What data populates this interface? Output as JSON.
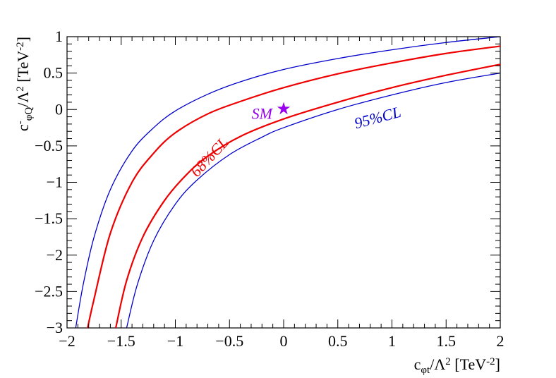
{
  "chart_data": {
    "type": "line",
    "xlabel": {
      "base": "c",
      "sub": "φt",
      "mid": "/Λ",
      "sup": "2",
      "unit_open": " [TeV",
      "unit_sup": "-2",
      "unit_close": "]"
    },
    "ylabel": {
      "base": "c",
      "sub": "φQ",
      "pre": "-",
      "mid": "/Λ",
      "sup": "2",
      "unit_open": " [TeV",
      "unit_sup": "-2",
      "unit_close": "]"
    },
    "xlim": [
      -2,
      2
    ],
    "ylim": [
      -3,
      1
    ],
    "x_ticks": [
      -2,
      -1.5,
      -1,
      -0.5,
      0,
      0.5,
      1,
      1.5,
      2
    ],
    "x_tick_labels": [
      "−2",
      "−1.5",
      "−1",
      "−0.5",
      "0",
      "0.5",
      "1",
      "1.5",
      "2"
    ],
    "y_ticks": [
      -3,
      -2.5,
      -2,
      -1.5,
      -1,
      -0.5,
      0,
      0.5,
      1
    ],
    "y_tick_labels": [
      "−3",
      "−2.5",
      "−2",
      "−1.5",
      "−1",
      "−0.5",
      "0",
      "0.5",
      "1"
    ],
    "grid": false,
    "series": [
      {
        "name": "95%CL",
        "color": "#0000cc",
        "width": 1.3,
        "x": [
          -1.92,
          -1.85,
          -1.75,
          -1.6,
          -1.4,
          -1.2,
          -1.0,
          -0.7,
          -0.4,
          0.0,
          0.5,
          1.0,
          1.5,
          2.0
        ],
        "y": [
          -3.0,
          -2.4,
          -1.75,
          -1.1,
          -0.57,
          -0.25,
          -0.02,
          0.21,
          0.38,
          0.55,
          0.7,
          0.82,
          0.92,
          1.0
        ]
      },
      {
        "name": "68%CL",
        "color": "#ee0000",
        "width": 2.2,
        "x": [
          -1.81,
          -1.75,
          -1.6,
          -1.4,
          -1.2,
          -1.0,
          -0.7,
          -0.4,
          0.0,
          0.5,
          1.0,
          1.5,
          2.0
        ],
        "y": [
          -3.0,
          -2.6,
          -1.7,
          -1.0,
          -0.6,
          -0.32,
          -0.06,
          0.11,
          0.3,
          0.49,
          0.64,
          0.77,
          0.87
        ]
      },
      {
        "name": "68%CL",
        "color": "#ee0000",
        "width": 2.2,
        "x": [
          -1.55,
          -1.45,
          -1.3,
          -1.1,
          -0.9,
          -0.7,
          -0.4,
          0.0,
          0.5,
          1.0,
          1.5,
          2.0
        ],
        "y": [
          -3.0,
          -2.35,
          -1.75,
          -1.25,
          -0.9,
          -0.64,
          -0.37,
          -0.13,
          0.1,
          0.3,
          0.47,
          0.62
        ]
      },
      {
        "name": "95%CL",
        "color": "#0000cc",
        "width": 1.3,
        "x": [
          -1.45,
          -1.35,
          -1.2,
          -1.0,
          -0.8,
          -0.5,
          -0.2,
          0.0,
          0.5,
          1.0,
          1.5,
          2.0
        ],
        "y": [
          -3.0,
          -2.4,
          -1.8,
          -1.3,
          -0.97,
          -0.62,
          -0.38,
          -0.25,
          0.0,
          0.2,
          0.37,
          0.5
        ]
      }
    ],
    "marker": {
      "label": "SM",
      "x": 0,
      "y": 0.02,
      "color": "#9900ee",
      "symbol": "★"
    },
    "annotations": [
      {
        "text": "68%CL",
        "x": -0.65,
        "y": -0.7,
        "color": "#ee0000",
        "rotate": -47
      },
      {
        "text": "SM",
        "x": -0.2,
        "y": -0.13,
        "color": "#9900ee",
        "rotate": 0
      },
      {
        "text": "95%CL",
        "x": 0.88,
        "y": -0.18,
        "color": "#0000cc",
        "rotate": -15
      }
    ]
  }
}
